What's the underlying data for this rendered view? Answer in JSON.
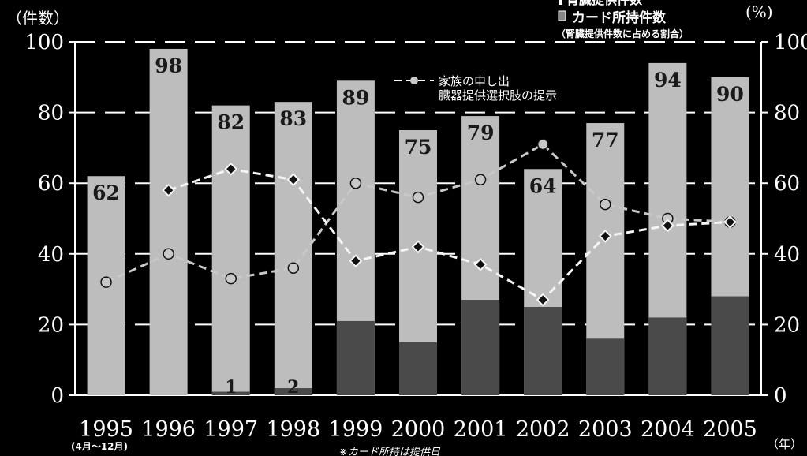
{
  "chart_data": {
    "type": "bar",
    "title": "",
    "left_axis_unit": "（件数）",
    "right_axis_unit": "(%)",
    "x_unit": "（年）",
    "x_sub_label": "(4月〜12月)",
    "footnote": "※カード所持は提供日",
    "categories": [
      "1995",
      "1996",
      "1997",
      "1998",
      "1999",
      "2000",
      "2001",
      "2002",
      "2003",
      "2004",
      "2005"
    ],
    "left_ylim": [
      0,
      100
    ],
    "right_ylim": [
      0,
      100
    ],
    "left_ticks": [
      "0",
      "20",
      "40",
      "60",
      "80",
      "100"
    ],
    "right_ticks": [
      "0",
      "20",
      "40",
      "60",
      "80",
      "100"
    ],
    "legend": {
      "bar_total": "腎臓提供件数",
      "bar_card": "カード所持件数",
      "bar_card_note": "（腎臓提供件数に占める割合）",
      "line_family": "家族の申し出",
      "line_option": "臓器提供選択肢の提示"
    },
    "series": [
      {
        "key": "donations",
        "name": "腎臓提供件数",
        "axis": "left",
        "values": [
          62,
          98,
          82,
          83,
          89,
          75,
          79,
          64,
          77,
          94,
          90
        ],
        "labels": [
          "62",
          "98",
          "82",
          "83",
          "89",
          "75",
          "79",
          "64",
          "77",
          "94",
          "90"
        ]
      },
      {
        "key": "card",
        "name": "カード所持件数",
        "axis": "left",
        "values": [
          0,
          0,
          1,
          2,
          21,
          15,
          27,
          25,
          16,
          22,
          28
        ],
        "labels": [
          "",
          "",
          "1",
          "2",
          "",
          "",
          "",
          "",
          "",
          "",
          ""
        ]
      },
      {
        "key": "family",
        "name": "家族の申し出",
        "axis": "right",
        "values": [
          32,
          40,
          33,
          36,
          60,
          56,
          61,
          71,
          54,
          50,
          49
        ]
      },
      {
        "key": "option",
        "name": "臓器提供選択肢の提示",
        "axis": "right",
        "values": [
          null,
          58,
          64,
          61,
          38,
          42,
          37,
          27,
          45,
          48,
          49
        ]
      }
    ],
    "colors": {
      "background": "#000000",
      "bar": "#bdbdbd",
      "card_bar": "#4a4a4a",
      "line_family": "#c8c8c8",
      "line_option": "#f5f5f5",
      "text": "#ffffff",
      "grid": "#ffffff"
    },
    "grid": true,
    "legend_position": "top-right"
  }
}
